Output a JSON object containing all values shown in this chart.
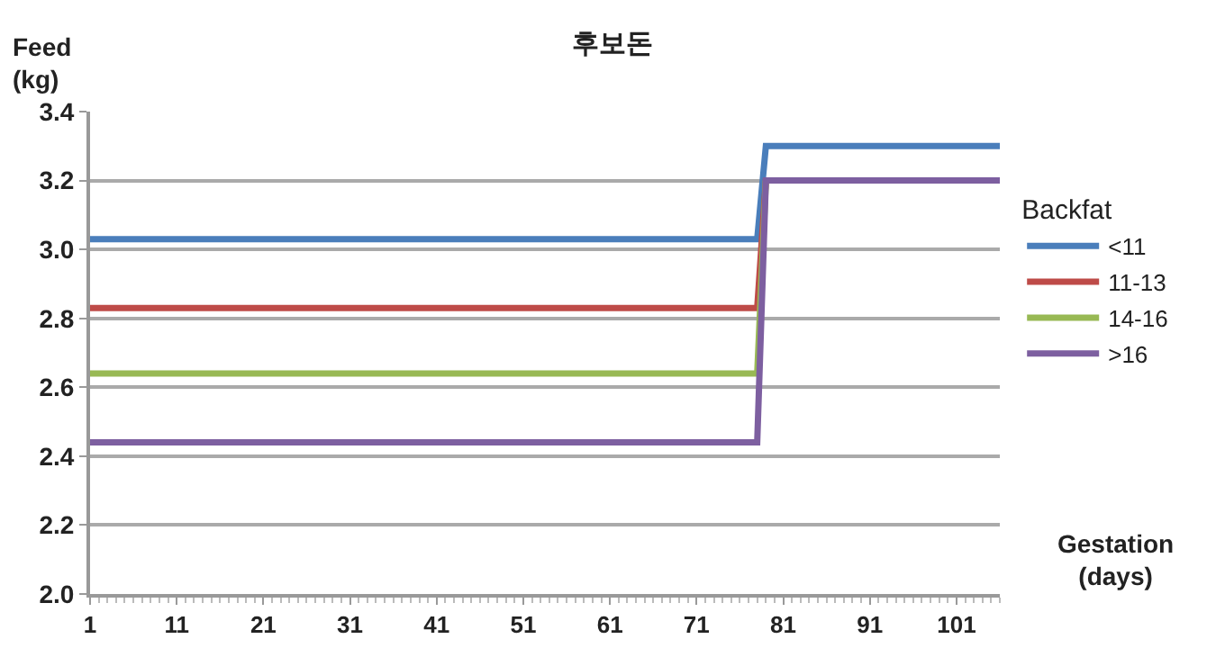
{
  "chart_data": {
    "type": "line",
    "title": "후보돈",
    "xlabel": "Gestation (days)",
    "ylabel": "Feed (kg)",
    "legend_title": "Backfat",
    "x": [
      1,
      78,
      79,
      106
    ],
    "series": [
      {
        "name": "<11",
        "color": "#4a7ebb",
        "values": [
          3.03,
          3.03,
          3.3,
          3.3
        ]
      },
      {
        "name": "11-13",
        "color": "#be4b48",
        "values": [
          2.83,
          2.83,
          3.2,
          3.2
        ]
      },
      {
        "name": "14-16",
        "color": "#98b954",
        "values": [
          2.64,
          2.64,
          3.2,
          null
        ]
      },
      {
        "name": ">16",
        "color": "#7d5fa0",
        "values": [
          2.44,
          2.44,
          3.2,
          3.2
        ]
      }
    ],
    "xlim": [
      1,
      106
    ],
    "xticks": [
      1,
      11,
      21,
      31,
      41,
      51,
      61,
      71,
      81,
      91,
      101
    ],
    "ylim": [
      2.0,
      3.4
    ],
    "yticks": [
      {
        "value": 2.0,
        "label": "2.0"
      },
      {
        "value": 2.2,
        "label": "2.2"
      },
      {
        "value": 2.4,
        "label": "2.4"
      },
      {
        "value": 2.6,
        "label": "2.6"
      },
      {
        "value": 2.8,
        "label": "2.8"
      },
      {
        "value": 3.0,
        "label": "3.0"
      },
      {
        "value": 3.2,
        "label": "3.2"
      },
      {
        "value": 3.4,
        "label": "3.4"
      }
    ],
    "grid": "y",
    "legend": "right",
    "marker": "none",
    "line_style": "solid"
  }
}
